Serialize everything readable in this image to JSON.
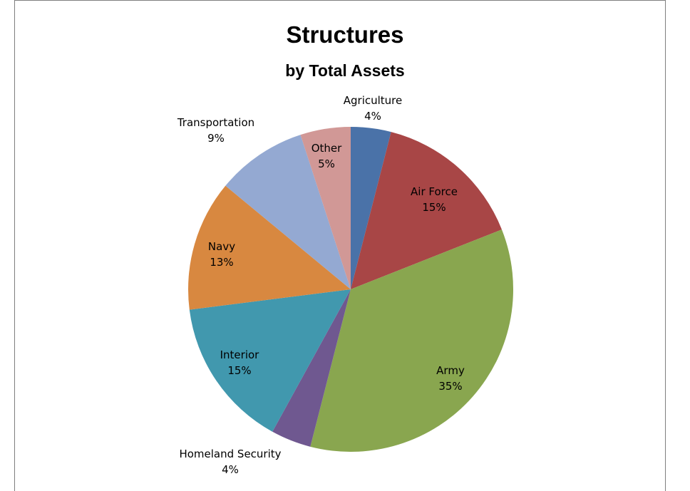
{
  "chart_data": {
    "type": "pie",
    "title": "Structures",
    "subtitle": "by Total Assets",
    "slices": [
      {
        "label": "Agriculture",
        "value": 4,
        "value_label": "4%",
        "color": "#4a72a8"
      },
      {
        "label": "Air Force",
        "value": 15,
        "value_label": "15%",
        "color": "#a84646"
      },
      {
        "label": "Army",
        "value": 35,
        "value_label": "35%",
        "color": "#89a64f"
      },
      {
        "label": "Homeland Security",
        "value": 4,
        "value_label": "4%",
        "color": "#6f5890"
      },
      {
        "label": "Interior",
        "value": 15,
        "value_label": "15%",
        "color": "#4198ae"
      },
      {
        "label": "Navy",
        "value": 13,
        "value_label": "13%",
        "color": "#d88840"
      },
      {
        "label": "Transportation",
        "value": 9,
        "value_label": "9%",
        "color": "#94a9d2"
      },
      {
        "label": "Other",
        "value": 5,
        "value_label": "5%",
        "color": "#d19896"
      }
    ]
  }
}
